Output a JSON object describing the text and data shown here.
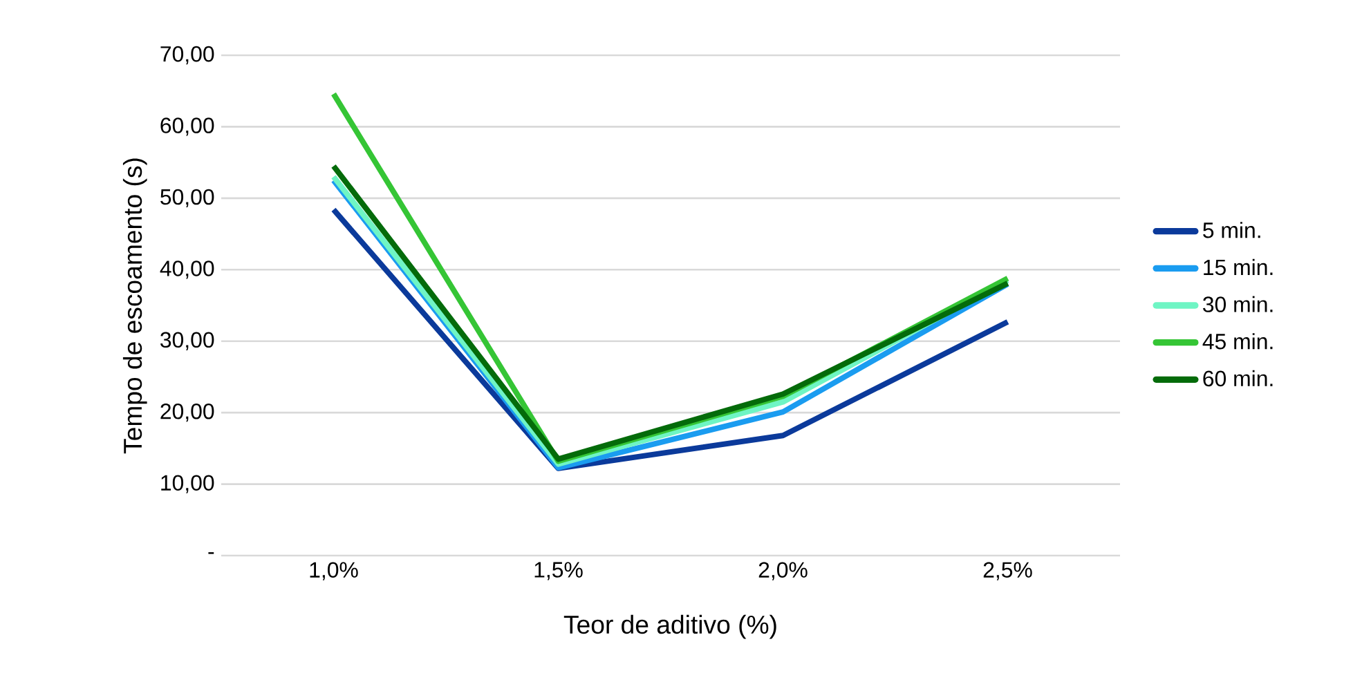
{
  "chart_data": {
    "type": "line",
    "xlabel": "Teor de aditivo (%)",
    "ylabel": "Tempo de escoamento (s)",
    "categories": [
      "1,0%",
      "1,5%",
      "2,0%",
      "2,5%"
    ],
    "ylim": [
      0,
      70
    ],
    "yticks": [
      {
        "value": 0,
        "label": "-"
      },
      {
        "value": 10,
        "label": "10,00"
      },
      {
        "value": 20,
        "label": "20,00"
      },
      {
        "value": 30,
        "label": "30,00"
      },
      {
        "value": 40,
        "label": "40,00"
      },
      {
        "value": 50,
        "label": "50,00"
      },
      {
        "value": 60,
        "label": "60,00"
      },
      {
        "value": 70,
        "label": "70,00"
      }
    ],
    "grid": "y",
    "legend": "right",
    "marker": "none",
    "series": [
      {
        "name": "5 min.",
        "color": "#0b3a9b",
        "values": [
          48.4,
          12.2,
          16.8,
          32.7
        ]
      },
      {
        "name": "15 min.",
        "color": "#1a9cf0",
        "values": [
          52.5,
          12.3,
          20.1,
          38.0
        ]
      },
      {
        "name": "30 min.",
        "color": "#6ff5c4",
        "values": [
          53.0,
          12.8,
          21.5,
          38.5
        ]
      },
      {
        "name": "45 min.",
        "color": "#35c535",
        "values": [
          64.6,
          13.2,
          22.3,
          38.8
        ]
      },
      {
        "name": "60 min.",
        "color": "#046b0a",
        "values": [
          54.5,
          13.5,
          22.6,
          38.1
        ]
      }
    ]
  }
}
